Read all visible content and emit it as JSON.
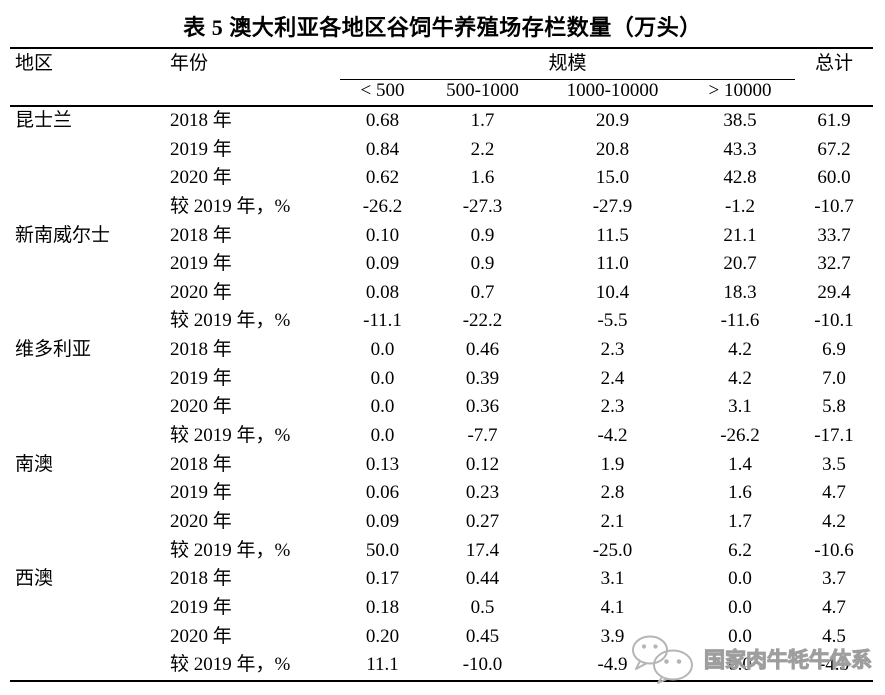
{
  "title": "表 5 澳大利亚各地区谷饲牛养殖场存栏数量（万头）",
  "table": {
    "header": {
      "region": "地区",
      "year": "年份",
      "scale": "规模",
      "total": "总计",
      "scale_bins": [
        "< 500",
        "500-1000",
        "1000-10000",
        "> 10000"
      ]
    },
    "groups": [
      {
        "region": "昆士兰",
        "rows": [
          {
            "year": "2018 年",
            "values": [
              "0.68",
              "1.7",
              "20.9",
              "38.5",
              "61.9"
            ]
          },
          {
            "year": "2019 年",
            "values": [
              "0.84",
              "2.2",
              "20.8",
              "43.3",
              "67.2"
            ]
          },
          {
            "year": "2020 年",
            "values": [
              "0.62",
              "1.6",
              "15.0",
              "42.8",
              "60.0"
            ]
          },
          {
            "year": "较 2019 年，%",
            "values": [
              "-26.2",
              "-27.3",
              "-27.9",
              "-1.2",
              "-10.7"
            ]
          }
        ]
      },
      {
        "region": "新南威尔士",
        "rows": [
          {
            "year": "2018 年",
            "values": [
              "0.10",
              "0.9",
              "11.5",
              "21.1",
              "33.7"
            ]
          },
          {
            "year": "2019 年",
            "values": [
              "0.09",
              "0.9",
              "11.0",
              "20.7",
              "32.7"
            ]
          },
          {
            "year": "2020 年",
            "values": [
              "0.08",
              "0.7",
              "10.4",
              "18.3",
              "29.4"
            ]
          },
          {
            "year": "较 2019 年，%",
            "values": [
              "-11.1",
              "-22.2",
              "-5.5",
              "-11.6",
              "-10.1"
            ]
          }
        ]
      },
      {
        "region": "维多利亚",
        "rows": [
          {
            "year": "2018 年",
            "values": [
              "0.0",
              "0.46",
              "2.3",
              "4.2",
              "6.9"
            ]
          },
          {
            "year": "2019 年",
            "values": [
              "0.0",
              "0.39",
              "2.4",
              "4.2",
              "7.0"
            ]
          },
          {
            "year": "2020 年",
            "values": [
              "0.0",
              "0.36",
              "2.3",
              "3.1",
              "5.8"
            ]
          },
          {
            "year": "较 2019 年，%",
            "values": [
              "0.0",
              "-7.7",
              "-4.2",
              "-26.2",
              "-17.1"
            ]
          }
        ]
      },
      {
        "region": "南澳",
        "rows": [
          {
            "year": "2018 年",
            "values": [
              "0.13",
              "0.12",
              "1.9",
              "1.4",
              "3.5"
            ]
          },
          {
            "year": "2019 年",
            "values": [
              "0.06",
              "0.23",
              "2.8",
              "1.6",
              "4.7"
            ]
          },
          {
            "year": "2020 年",
            "values": [
              "0.09",
              "0.27",
              "2.1",
              "1.7",
              "4.2"
            ]
          },
          {
            "year": "较 2019 年，%",
            "values": [
              "50.0",
              "17.4",
              "-25.0",
              "6.2",
              "-10.6"
            ]
          }
        ]
      },
      {
        "region": "西澳",
        "rows": [
          {
            "year": "2018 年",
            "values": [
              "0.17",
              "0.44",
              "3.1",
              "0.0",
              "3.7"
            ]
          },
          {
            "year": "2019 年",
            "values": [
              "0.18",
              "0.5",
              "4.1",
              "0.0",
              "4.7"
            ]
          },
          {
            "year": "2020 年",
            "values": [
              "0.20",
              "0.45",
              "3.9",
              "0.0",
              "4.5"
            ]
          },
          {
            "year": "较 2019 年，%",
            "values": [
              "11.1",
              "-10.0",
              "-4.9",
              "0.0",
              "-4.3"
            ]
          }
        ]
      }
    ]
  },
  "watermark": {
    "icon": "wechat-icon",
    "text": "国家肉牛牦牛体系"
  },
  "colors": {
    "text": "#000000",
    "watermark_gray": "#9e9e9e",
    "background": "#ffffff"
  }
}
